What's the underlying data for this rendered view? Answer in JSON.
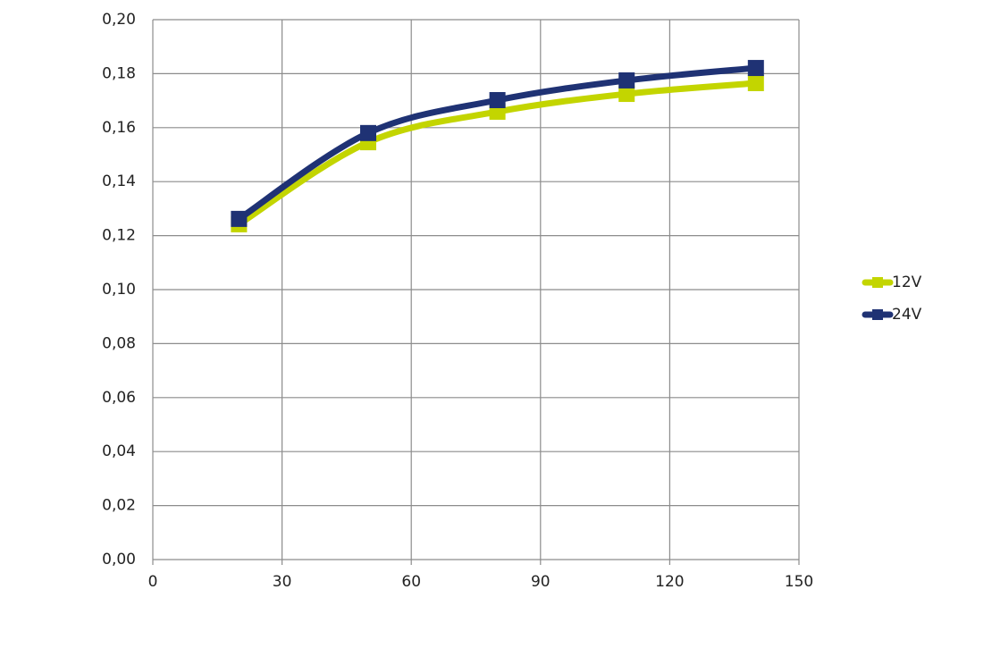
{
  "chart_data": {
    "type": "line",
    "x": [
      20,
      50,
      80,
      110,
      140
    ],
    "series": [
      {
        "name": "12V",
        "color": "#c3d500",
        "values": [
          0.1242,
          0.1546,
          0.1659,
          0.1725,
          0.1765
        ]
      },
      {
        "name": "24V",
        "color": "#1f3274",
        "values": [
          0.1262,
          0.158,
          0.1702,
          0.1775,
          0.1821
        ]
      }
    ],
    "xlim": [
      0,
      150
    ],
    "xticks": [
      0,
      30,
      60,
      90,
      120,
      150
    ],
    "ylim": [
      0,
      0.2
    ],
    "yticks": [
      {
        "value": 0,
        "label": "0,00"
      },
      {
        "value": 0.02,
        "label": "0,02"
      },
      {
        "value": 0.04,
        "label": "0,04"
      },
      {
        "value": 0.06,
        "label": "0,06"
      },
      {
        "value": 0.08,
        "label": "0,08"
      },
      {
        "value": 0.1,
        "label": "0,10"
      },
      {
        "value": 0.12,
        "label": "0,12"
      },
      {
        "value": 0.14,
        "label": "0,14"
      },
      {
        "value": 0.16,
        "label": "0,16"
      },
      {
        "value": 0.18,
        "label": "0,18"
      },
      {
        "value": 0.2,
        "label": "0,20"
      }
    ],
    "grid": true,
    "smooth": true,
    "legend": "right"
  }
}
